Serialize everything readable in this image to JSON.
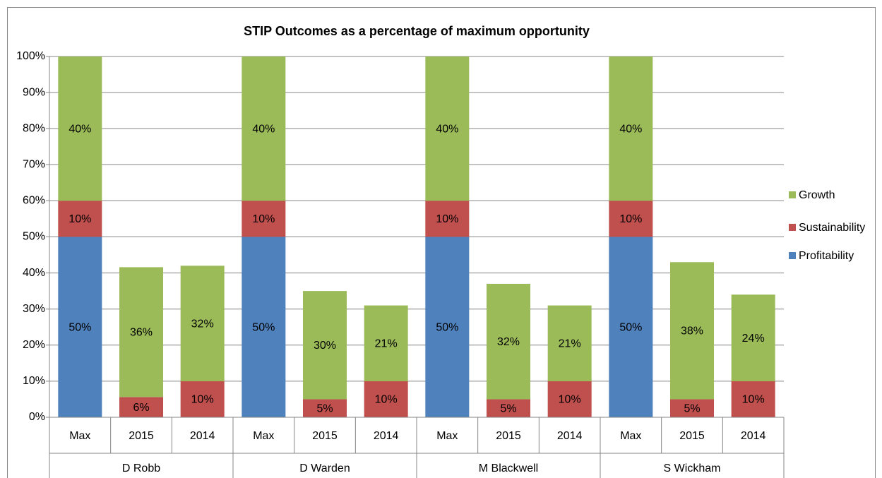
{
  "chart_data": {
    "type": "stacked_bar",
    "title": "STIP Outcomes as a percentage of maximum opportunity",
    "categories": [
      "Max",
      "2015",
      "2014",
      "Max",
      "2015",
      "2014",
      "Max",
      "2015",
      "2014",
      "Max",
      "2015",
      "2014"
    ],
    "groups": [
      "D Robb",
      "D Warden",
      "M Blackwell",
      "S Wickham"
    ],
    "series": [
      {
        "name": "Profitability",
        "color": "#4f81bd",
        "values": [
          50,
          null,
          null,
          50,
          null,
          null,
          50,
          null,
          null,
          50,
          null,
          null
        ],
        "value_labels": [
          "50%",
          null,
          null,
          "50%",
          null,
          null,
          "50%",
          null,
          null,
          "50%",
          null,
          null
        ]
      },
      {
        "name": "Sustainability",
        "color": "#c0504d",
        "values": [
          10,
          5.6,
          10,
          10,
          5,
          10,
          10,
          5,
          10,
          10,
          5,
          10
        ],
        "value_labels": [
          "10%",
          "6%",
          "10%",
          "10%",
          "5%",
          "10%",
          "10%",
          "5%",
          "10%",
          "10%",
          "5%",
          "10%"
        ]
      },
      {
        "name": "Growth",
        "color": "#9bbb59",
        "values": [
          40,
          36,
          32,
          40,
          30,
          21,
          40,
          32,
          21,
          40,
          38,
          24
        ],
        "value_labels": [
          "40%",
          "36%",
          "32%",
          "40%",
          "30%",
          "21%",
          "40%",
          "32%",
          "21%",
          "40%",
          "38%",
          "24%"
        ]
      }
    ],
    "ylim": [
      0,
      100
    ],
    "yticks": [
      {
        "value": 0,
        "label": "0%"
      },
      {
        "value": 10,
        "label": "10%"
      },
      {
        "value": 20,
        "label": "20%"
      },
      {
        "value": 30,
        "label": "30%"
      },
      {
        "value": 40,
        "label": "40%"
      },
      {
        "value": 50,
        "label": "50%"
      },
      {
        "value": 60,
        "label": "60%"
      },
      {
        "value": 70,
        "label": "70%"
      },
      {
        "value": 80,
        "label": "80%"
      },
      {
        "value": 90,
        "label": "90%"
      },
      {
        "value": 100,
        "label": "100%"
      }
    ],
    "grid": true,
    "legend": "right"
  }
}
